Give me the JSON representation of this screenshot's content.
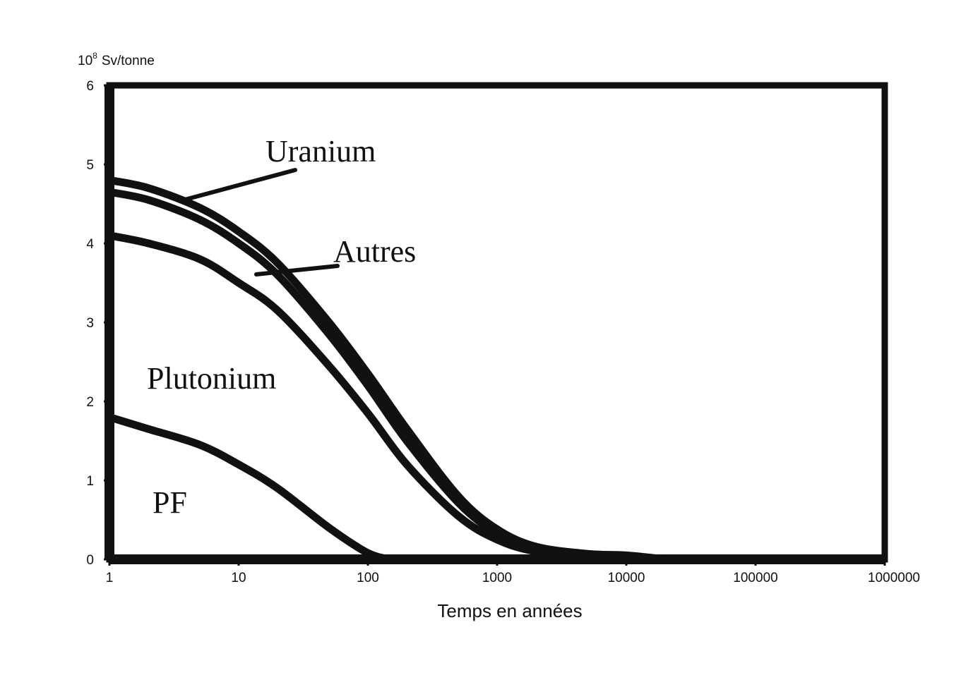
{
  "chart_data": {
    "type": "line",
    "x_scale": "log",
    "xlim": [
      1,
      1000000
    ],
    "ylim": [
      0,
      6
    ],
    "grid": false,
    "legend": "none",
    "y_unit_label": {
      "base": "10",
      "exponent": "8",
      "unit": "Sv/tonne"
    },
    "xlabel": "Temps en années",
    "x_ticks": [
      "1",
      "10",
      "100",
      "1000",
      "10000",
      "100000",
      "1000000"
    ],
    "y_ticks": [
      "0",
      "1",
      "2",
      "3",
      "4",
      "5",
      "6"
    ],
    "series": [
      {
        "name": "Uranium",
        "x": [
          1,
          2,
          5,
          10,
          20,
          50,
          100,
          200,
          500,
          1000,
          2000,
          5000,
          10000,
          20000
        ],
        "y": [
          4.8,
          4.7,
          4.45,
          4.15,
          3.75,
          3.0,
          2.35,
          1.65,
          0.8,
          0.38,
          0.16,
          0.07,
          0.05,
          0.0
        ]
      },
      {
        "name": "Autres",
        "x": [
          1,
          2,
          5,
          10,
          20,
          50,
          100,
          200,
          500,
          1000,
          2000,
          5000,
          10000,
          20000
        ],
        "y": [
          4.65,
          4.55,
          4.3,
          4.0,
          3.6,
          2.85,
          2.2,
          1.5,
          0.72,
          0.33,
          0.14,
          0.06,
          0.04,
          0.0
        ]
      },
      {
        "name": "Plutonium",
        "x": [
          1,
          2,
          5,
          10,
          20,
          50,
          100,
          200,
          500,
          1000,
          2000,
          5000,
          10000,
          20000
        ],
        "y": [
          4.1,
          4.0,
          3.8,
          3.5,
          3.15,
          2.45,
          1.85,
          1.2,
          0.55,
          0.25,
          0.1,
          0.05,
          0.03,
          0.0
        ]
      },
      {
        "name": "PF",
        "x": [
          1,
          2,
          5,
          10,
          20,
          50,
          100,
          150
        ],
        "y": [
          1.8,
          1.65,
          1.45,
          1.2,
          0.9,
          0.4,
          0.08,
          0.0
        ]
      }
    ]
  }
}
